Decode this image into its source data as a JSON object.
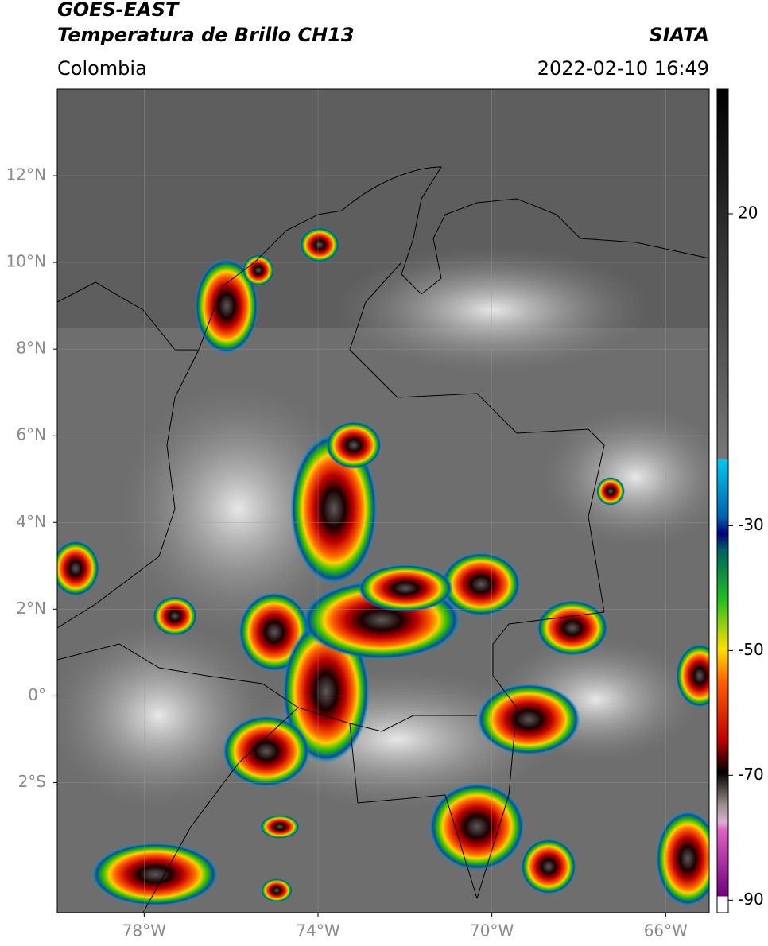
{
  "chart_data": {
    "type": "map",
    "title": "GOES-EAST",
    "subtitle": "Temperatura de Brillo CH13",
    "source": "SIATA",
    "region": "Colombia",
    "timestamp": "2022-02-10 16:49",
    "xlim": [
      -80,
      -65
    ],
    "ylim": [
      -5,
      14
    ],
    "xticks": [
      {
        "value": -78,
        "label": "78°W"
      },
      {
        "value": -74,
        "label": "74°W"
      },
      {
        "value": -70,
        "label": "70°W"
      },
      {
        "value": -66,
        "label": "66°W"
      }
    ],
    "yticks": [
      {
        "value": 12,
        "label": "12°N"
      },
      {
        "value": 10,
        "label": "10°N"
      },
      {
        "value": 8,
        "label": "8°N"
      },
      {
        "value": 6,
        "label": "6°N"
      },
      {
        "value": 4,
        "label": "4°N"
      },
      {
        "value": 2,
        "label": "2°N"
      },
      {
        "value": 0,
        "label": "0°"
      },
      {
        "value": -2,
        "label": "2°S"
      }
    ],
    "grid": true,
    "colorbar_lim": [
      -92,
      40
    ],
    "colorbar_ticks": [
      20,
      -30,
      -50,
      -70,
      -90
    ]
  }
}
